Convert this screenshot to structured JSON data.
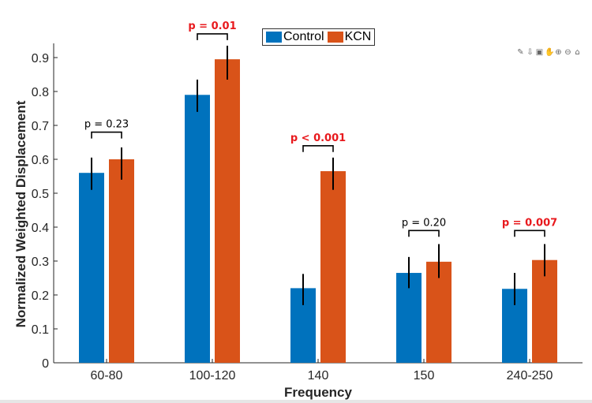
{
  "chart_data": {
    "type": "bar",
    "title": "",
    "xlabel": "Frequency",
    "ylabel": "Normalized Weighted Displacement",
    "ylim": [
      0,
      0.9
    ],
    "yticks": [
      0,
      0.1,
      0.2,
      0.3,
      0.4,
      0.5,
      0.6,
      0.7,
      0.8,
      0.9
    ],
    "ytick_labels": [
      "0",
      "0.1",
      "0.2",
      "0.3",
      "0.4",
      "0.5",
      "0.6",
      "0.7",
      "0.8",
      "0.9"
    ],
    "categories": [
      "60-80",
      "100-120",
      "140",
      "150",
      "240-250"
    ],
    "series": [
      {
        "name": "Control",
        "color": "#0072BD",
        "values": [
          0.56,
          0.79,
          0.22,
          0.265,
          0.218
        ],
        "err_low": [
          0.51,
          0.74,
          0.17,
          0.22,
          0.17
        ],
        "err_high": [
          0.605,
          0.835,
          0.262,
          0.312,
          0.265
        ]
      },
      {
        "name": "KCN",
        "color": "#D95319",
        "values": [
          0.6,
          0.895,
          0.565,
          0.298,
          0.303
        ],
        "err_low": [
          0.54,
          0.835,
          0.51,
          0.25,
          0.255
        ],
        "err_high": [
          0.635,
          0.935,
          0.605,
          0.35,
          0.35
        ]
      }
    ],
    "annotations": [
      {
        "category": "60-80",
        "text": "p = 0.23",
        "significant": false,
        "level": 0.68
      },
      {
        "category": "100-120",
        "text": "p = 0.01",
        "significant": true,
        "level": 0.97
      },
      {
        "category": "140",
        "text": "p < 0.001",
        "significant": true,
        "level": 0.64
      },
      {
        "category": "150",
        "text": "p = 0.20",
        "significant": false,
        "level": 0.39
      },
      {
        "category": "240-250",
        "text": "p = 0.007",
        "significant": true,
        "level": 0.39
      }
    ],
    "legend_position": "top-center",
    "grid": false,
    "colors": {
      "significant": "#E8191D",
      "normal": "#000000",
      "axis": "#262626"
    }
  },
  "toolbar_icons": [
    "brush-icon",
    "export-icon",
    "data-tips-icon",
    "pan-icon",
    "zoom-in-icon",
    "zoom-out-icon",
    "home-icon"
  ]
}
